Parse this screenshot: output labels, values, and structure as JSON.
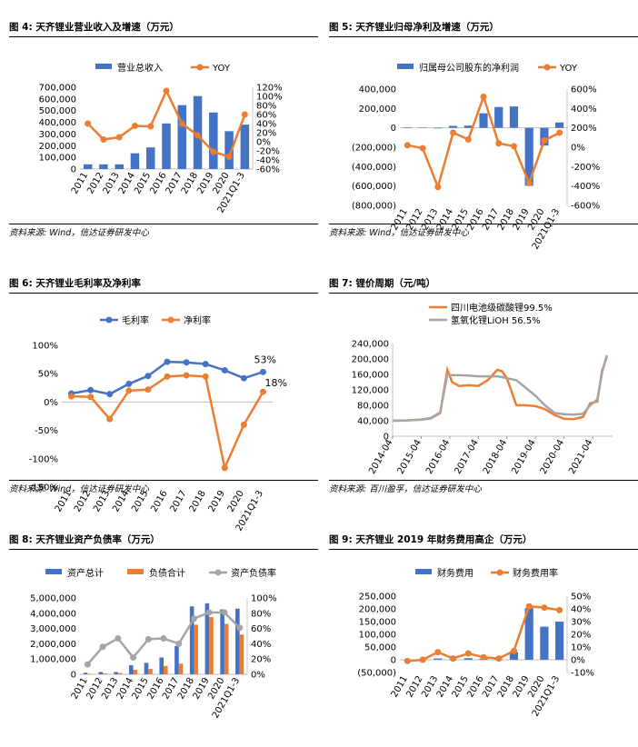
{
  "colors": {
    "blue": "#4472C4",
    "orange": "#ED7D31",
    "gray": "#A5A5A5"
  },
  "panels": [
    {
      "title": "图 4: 天齐锂业营业收入及增速（万元）",
      "source": "资料来源: Wind，信达证券研发中心",
      "chart_data": {
        "type": "bar",
        "categories": [
          "2011",
          "2012",
          "2013",
          "2014",
          "2015",
          "2016",
          "2017",
          "2018",
          "2019",
          "2020",
          "2021Q1-3"
        ],
        "series": [
          {
            "name": "营业总收入",
            "type": "bar",
            "axis": "left",
            "color": "blue",
            "values": [
              40000,
              40000,
              40000,
              135000,
              185000,
              390000,
              547000,
              624000,
              484000,
              324000,
              380000
            ]
          },
          {
            "name": "YOY",
            "type": "line",
            "axis": "right",
            "color": "orange",
            "values": [
              40,
              5,
              10,
              35,
              34,
              112,
              40,
              14,
              -22,
              -33,
              60
            ]
          }
        ],
        "ylim": [
          0,
          700000
        ],
        "y2lim": [
          -60,
          120
        ],
        "yticks": [
          "0",
          "100,000",
          "200,000",
          "300,000",
          "400,000",
          "500,000",
          "600,000",
          "700,000"
        ],
        "y2ticks": [
          "-60%",
          "-40%",
          "-20%",
          "0%",
          "20%",
          "40%",
          "60%",
          "80%",
          "100%",
          "120%"
        ],
        "legend": "top"
      }
    },
    {
      "title": "图 5: 天齐锂业归母净利及增速（万元）",
      "source": "资料来源: Wind，信达证券研发中心",
      "chart_data": {
        "type": "bar",
        "categories": [
          "2011",
          "2012",
          "2013",
          "2014",
          "2015",
          "2016",
          "2017",
          "2018",
          "2019",
          "2020",
          "2021Q1-3"
        ],
        "series": [
          {
            "name": "归属母公司股东的净利润",
            "type": "bar",
            "axis": "left",
            "color": "blue",
            "values": [
              3000,
              2000,
              -6000,
              20000,
              23000,
              150000,
              215000,
              220000,
              -598000,
              -183000,
              55000
            ]
          },
          {
            "name": "YOY",
            "type": "line",
            "axis": "right",
            "color": "orange",
            "values": [
              20,
              -10,
              -410,
              150,
              80,
              520,
              40,
              10,
              -370,
              70,
              150
            ]
          }
        ],
        "ylim": [
          -800000,
          400000
        ],
        "y2lim": [
          -600,
          600
        ],
        "yticks": [
          "(800,000)",
          "(600,000)",
          "(400,000)",
          "(200,000)",
          "0",
          "200,000",
          "400,000"
        ],
        "y2ticks": [
          "-600%",
          "-400%",
          "-200%",
          "0%",
          "200%",
          "400%",
          "600%"
        ],
        "legend": "top"
      }
    },
    {
      "title": "图 6: 天齐锂业毛利率及净利率",
      "source": "资料来源: Wind，信达证券研发中心",
      "chart_data": {
        "type": "line",
        "categories": [
          "2011",
          "2012",
          "2013",
          "2014",
          "2015",
          "2016",
          "2017",
          "2018",
          "2019",
          "2020",
          "2021Q1-3"
        ],
        "series": [
          {
            "name": "毛利率",
            "color": "blue",
            "values": [
              15,
              21,
              14,
              32,
              46,
              71,
              70,
              67,
              56,
              42,
              53
            ]
          },
          {
            "name": "净利率",
            "color": "orange",
            "values": [
              10,
              9,
              -30,
              20,
              22,
              45,
              47,
              45,
              -116,
              -40,
              18
            ]
          }
        ],
        "ylim": [
          -150,
          100
        ],
        "yticks": [
          "-150%",
          "-100%",
          "-50%",
          "0%",
          "50%",
          "100%"
        ],
        "annotations": [
          "53%",
          "18%"
        ],
        "legend": "top"
      }
    },
    {
      "title": "图 7: 锂价周期（元/吨）",
      "source": "资料来源: 百川盈孚，信达证券研发中心",
      "chart_data": {
        "type": "line",
        "x": [
          "2014-04",
          "2014-10",
          "2015-04",
          "2015-08",
          "2015-12",
          "2016-03",
          "2016-05",
          "2016-08",
          "2016-12",
          "2017-04",
          "2017-08",
          "2017-12",
          "2018-02",
          "2018-04",
          "2018-08",
          "2018-12",
          "2019-04",
          "2019-08",
          "2019-12",
          "2020-04",
          "2020-08",
          "2020-12",
          "2021-03",
          "2021-06",
          "2021-08",
          "2021-10"
        ],
        "series": [
          {
            "name": "四川电池级碳酸锂99.5%",
            "color": "orange",
            "values": [
              40000,
              41000,
              43000,
              46000,
              60000,
              172000,
              140000,
              130000,
              132000,
              130000,
              145000,
              172000,
              168000,
              150000,
              80000,
              80000,
              78000,
              70000,
              55000,
              45000,
              44000,
              50000,
              85000,
              90000,
              170000,
              205000
            ]
          },
          {
            "name": "氢氧化锂LiOH 56.5%",
            "color": "gray",
            "values": [
              40000,
              41000,
              43000,
              47000,
              62000,
              160000,
              158000,
              158000,
              157000,
              155000,
              155000,
              155000,
              153000,
              150000,
              145000,
              125000,
              105000,
              80000,
              60000,
              57000,
              56000,
              58000,
              80000,
              95000,
              165000,
              210000
            ]
          }
        ],
        "ylim": [
          0,
          240000
        ],
        "yticks": [
          "0",
          "40,000",
          "80,000",
          "120,000",
          "160,000",
          "200,000",
          "240,000"
        ],
        "xticks": [
          "2014-04",
          "2015-04",
          "2016-04",
          "2017-04",
          "2018-04",
          "2019-04",
          "2020-04",
          "2021-04"
        ],
        "legend": "top"
      }
    },
    {
      "title": "图 8: 天齐锂业资产负债率（万元）",
      "source": "",
      "chart_data": {
        "type": "bar",
        "categories": [
          "2011",
          "2012",
          "2013",
          "2014",
          "2015",
          "2016",
          "2017",
          "2018",
          "2019",
          "2020",
          "2021Q1-3"
        ],
        "series": [
          {
            "name": "资产总计",
            "type": "bar",
            "axis": "left",
            "color": "blue",
            "values": [
              100000,
              150000,
              150000,
              600000,
              750000,
              1100000,
              1850000,
              4450000,
              4650000,
              4250000,
              4300000
            ]
          },
          {
            "name": "负债合计",
            "type": "bar",
            "axis": "left",
            "color": "orange",
            "values": [
              20000,
              60000,
              80000,
              300000,
              350000,
              550000,
              700000,
              3250000,
              3750000,
              3300000,
              2600000
            ]
          },
          {
            "name": "资产负债率",
            "type": "line",
            "axis": "right",
            "color": "gray",
            "values": [
              13,
              36,
              47,
              22,
              46,
              47,
              40,
              73,
              81,
              81,
              61
            ]
          }
        ],
        "ylim": [
          0,
          5000000
        ],
        "y2lim": [
          0,
          100
        ],
        "yticks": [
          "0",
          "1,000,000",
          "2,000,000",
          "3,000,000",
          "4,000,000",
          "5,000,000"
        ],
        "y2ticks": [
          "0%",
          "20%",
          "40%",
          "60%",
          "80%",
          "100%"
        ],
        "legend": "top"
      }
    },
    {
      "title": "图 9: 天齐锂业 2019 年财务费用高企（万元）",
      "source": "",
      "chart_data": {
        "type": "bar",
        "categories": [
          "2011",
          "2012",
          "2013",
          "2014",
          "2015",
          "2016",
          "2017",
          "2018",
          "2019",
          "2020",
          "2021Q1-3"
        ],
        "series": [
          {
            "name": "财务费用",
            "type": "bar",
            "axis": "left",
            "color": "blue",
            "values": [
              -1000,
              1000,
              5000,
              1000,
              6000,
              4000,
              2000,
              30000,
              203000,
              130000,
              150000
            ]
          },
          {
            "name": "财务费用率",
            "type": "line",
            "axis": "right",
            "color": "orange",
            "values": [
              -1,
              0,
              6,
              1,
              5,
              2,
              1,
              7,
              42,
              41,
              39
            ]
          }
        ],
        "ylim": [
          -50000,
          250000
        ],
        "y2lim": [
          -10,
          50
        ],
        "yticks": [
          "(50,000)",
          "0",
          "50,000",
          "100,000",
          "150,000",
          "200,000",
          "250,000"
        ],
        "y2ticks": [
          "-10%",
          "0%",
          "10%",
          "20%",
          "30%",
          "40%",
          "50%"
        ],
        "legend": "top"
      }
    }
  ]
}
